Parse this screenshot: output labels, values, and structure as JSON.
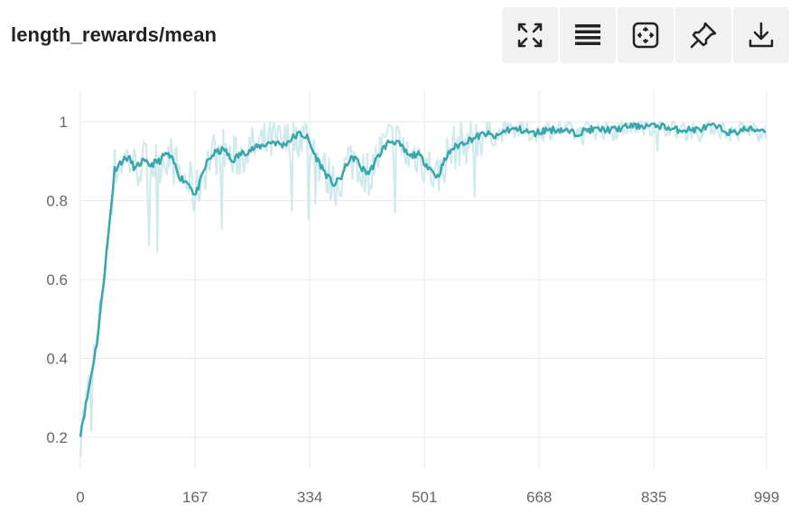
{
  "title": "length_rewards/mean",
  "toolbar": {
    "buttons": [
      {
        "icon": "fullscreen-icon"
      },
      {
        "icon": "list-icon"
      },
      {
        "icon": "fit-view-icon"
      },
      {
        "icon": "pin-icon"
      },
      {
        "icon": "download-icon"
      }
    ]
  },
  "colors": {
    "line": "#3aa5aa",
    "band": "#c9e8ea",
    "grid": "#e8e8e8"
  },
  "chart_data": {
    "type": "line",
    "title": "length_rewards/mean",
    "xlabel": "",
    "ylabel": "",
    "xlim": [
      0,
      999
    ],
    "ylim": [
      0.12,
      1.08
    ],
    "x_ticks": [
      "0",
      "167",
      "334",
      "501",
      "668",
      "835",
      "999"
    ],
    "y_ticks": [
      "0.2",
      "0.4",
      "0.6",
      "0.8",
      "1"
    ],
    "grid": true,
    "series": [
      {
        "smoothed": [
          [
            0,
            0.21
          ],
          [
            10,
            0.3
          ],
          [
            25,
            0.45
          ],
          [
            40,
            0.7
          ],
          [
            50,
            0.88
          ],
          [
            60,
            0.9
          ],
          [
            70,
            0.91
          ],
          [
            80,
            0.88
          ],
          [
            90,
            0.9
          ],
          [
            100,
            0.89
          ],
          [
            115,
            0.9
          ],
          [
            125,
            0.92
          ],
          [
            135,
            0.9
          ],
          [
            145,
            0.86
          ],
          [
            160,
            0.84
          ],
          [
            167,
            0.81
          ],
          [
            175,
            0.85
          ],
          [
            185,
            0.9
          ],
          [
            195,
            0.92
          ],
          [
            210,
            0.93
          ],
          [
            220,
            0.9
          ],
          [
            235,
            0.92
          ],
          [
            250,
            0.93
          ],
          [
            265,
            0.94
          ],
          [
            280,
            0.95
          ],
          [
            295,
            0.94
          ],
          [
            310,
            0.96
          ],
          [
            320,
            0.97
          ],
          [
            330,
            0.96
          ],
          [
            340,
            0.92
          ],
          [
            350,
            0.89
          ],
          [
            360,
            0.86
          ],
          [
            370,
            0.84
          ],
          [
            380,
            0.86
          ],
          [
            390,
            0.9
          ],
          [
            400,
            0.91
          ],
          [
            410,
            0.88
          ],
          [
            420,
            0.87
          ],
          [
            430,
            0.9
          ],
          [
            440,
            0.93
          ],
          [
            450,
            0.95
          ],
          [
            460,
            0.95
          ],
          [
            470,
            0.93
          ],
          [
            480,
            0.91
          ],
          [
            490,
            0.92
          ],
          [
            500,
            0.9
          ],
          [
            510,
            0.88
          ],
          [
            520,
            0.86
          ],
          [
            530,
            0.9
          ],
          [
            540,
            0.93
          ],
          [
            550,
            0.94
          ],
          [
            560,
            0.95
          ],
          [
            575,
            0.96
          ],
          [
            590,
            0.97
          ],
          [
            605,
            0.96
          ],
          [
            620,
            0.98
          ],
          [
            640,
            0.98
          ],
          [
            660,
            0.97
          ],
          [
            680,
            0.98
          ],
          [
            700,
            0.98
          ],
          [
            720,
            0.97
          ],
          [
            740,
            0.98
          ],
          [
            760,
            0.98
          ],
          [
            780,
            0.98
          ],
          [
            800,
            0.99
          ],
          [
            820,
            0.99
          ],
          [
            840,
            0.99
          ],
          [
            850,
            0.99
          ],
          [
            860,
            0.98
          ],
          [
            880,
            0.98
          ],
          [
            900,
            0.98
          ],
          [
            920,
            0.99
          ],
          [
            935,
            0.98
          ],
          [
            950,
            0.97
          ],
          [
            965,
            0.98
          ],
          [
            980,
            0.98
          ],
          [
            999,
            0.98
          ]
        ]
      }
    ]
  }
}
